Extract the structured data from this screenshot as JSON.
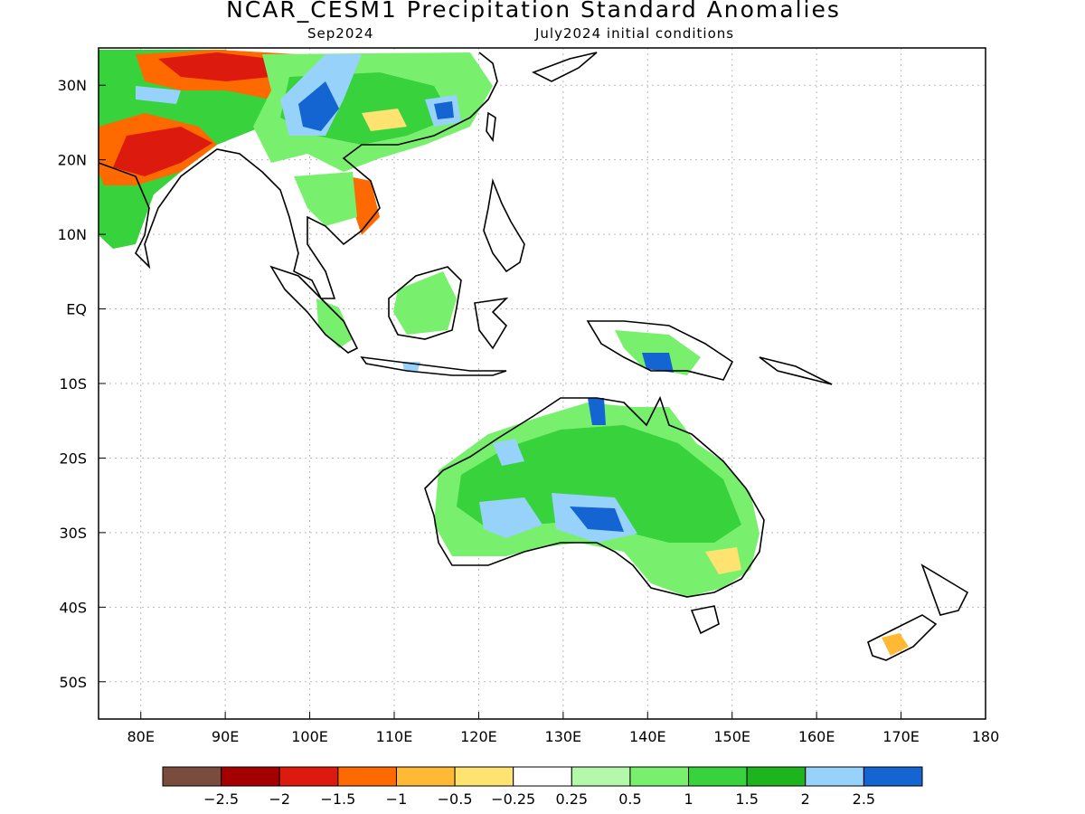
{
  "title": "NCAR_CESM1 Precipitation Standard Anomalies",
  "subtitle_left": "Sep2024",
  "subtitle_right": "July2024 initial conditions",
  "lon_labels": [
    "80E",
    "90E",
    "100E",
    "110E",
    "120E",
    "130E",
    "140E",
    "150E",
    "160E",
    "170E",
    "180"
  ],
  "lat_labels": [
    "30N",
    "20N",
    "10N",
    "EQ",
    "10S",
    "20S",
    "30S",
    "40S",
    "50S"
  ],
  "lon_range": [
    75,
    180
  ],
  "lat_range": [
    -55,
    35
  ],
  "colorbar": {
    "colors": [
      "#7a4c3e",
      "#a50000",
      "#dd1a0e",
      "#ff6a00",
      "#ffb934",
      "#ffe371",
      "#ffffff",
      "#b4f9aa",
      "#78f06e",
      "#37d23c",
      "#1eb41e",
      "#96d2fa",
      "#1464d2"
    ],
    "labels": [
      "−2.5",
      "−2",
      "−1.5",
      "−1",
      "−0.5",
      "−0.25",
      "0.25",
      "0.5",
      "1",
      "1.5",
      "2",
      "2.5"
    ]
  },
  "colors": {
    "coast": "#000000",
    "grid": "#bbbbbb"
  }
}
